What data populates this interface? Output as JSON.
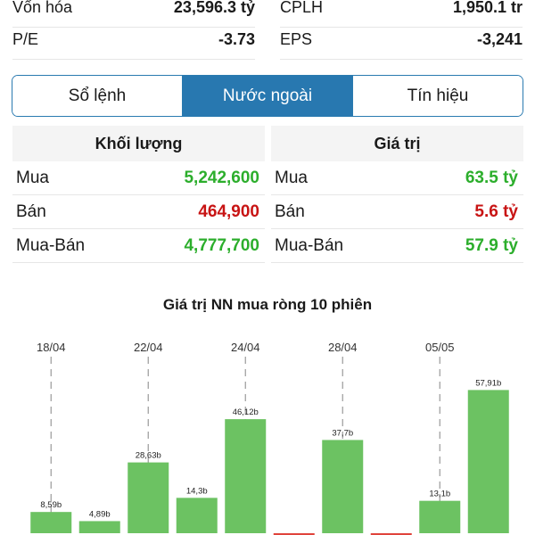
{
  "stats": [
    {
      "label": "Vốn hóa",
      "value": "23,596.3 tỷ",
      "label2": "CPLH",
      "value2": "1,950.1 tr"
    },
    {
      "label": "P/E",
      "value": "-3.73",
      "label2": "EPS",
      "value2": "-3,241"
    }
  ],
  "tabs": [
    {
      "label": "Sổ lệnh",
      "active": false
    },
    {
      "label": "Nước ngoài",
      "active": true
    },
    {
      "label": "Tín hiệu",
      "active": false
    }
  ],
  "volume": {
    "header": "Khối lượng",
    "rows": [
      {
        "label": "Mua",
        "value": "5,242,600",
        "color": "#2cae2c"
      },
      {
        "label": "Bán",
        "value": "464,900",
        "color": "#c81414"
      },
      {
        "label": "Mua-Bán",
        "value": "4,777,700",
        "color": "#2cae2c"
      }
    ]
  },
  "value": {
    "header": "Giá trị",
    "rows": [
      {
        "label": "Mua",
        "value": "63.5 tỷ",
        "color": "#2cae2c"
      },
      {
        "label": "Bán",
        "value": "5.6 tỷ",
        "color": "#c81414"
      },
      {
        "label": "Mua-Bán",
        "value": "57.9 tỷ",
        "color": "#2cae2c"
      }
    ]
  },
  "chart_title": "Giá trị NN mua ròng 10 phiên",
  "chart_data": {
    "type": "bar",
    "title": "Giá trị NN mua ròng 10 phiên",
    "date_labels": [
      {
        "index": 0,
        "label": "18/04"
      },
      {
        "index": 2,
        "label": "22/04"
      },
      {
        "index": 4,
        "label": "24/04"
      },
      {
        "index": 6,
        "label": "28/04"
      },
      {
        "index": 8,
        "label": "05/05"
      }
    ],
    "values": [
      8.59,
      4.89,
      28.63,
      14.3,
      46.12,
      -1,
      37.7,
      -1,
      13.1,
      57.91
    ],
    "data_labels": [
      "8,59b",
      "4,89b",
      "28,63b",
      "14,3b",
      "46,12b",
      "",
      "37,7b",
      "",
      "13,1b",
      "57,91b"
    ],
    "ylim": [
      -3,
      75
    ],
    "positive_color": "#6cc262",
    "negative_color": "#e0443c",
    "grid": false
  }
}
